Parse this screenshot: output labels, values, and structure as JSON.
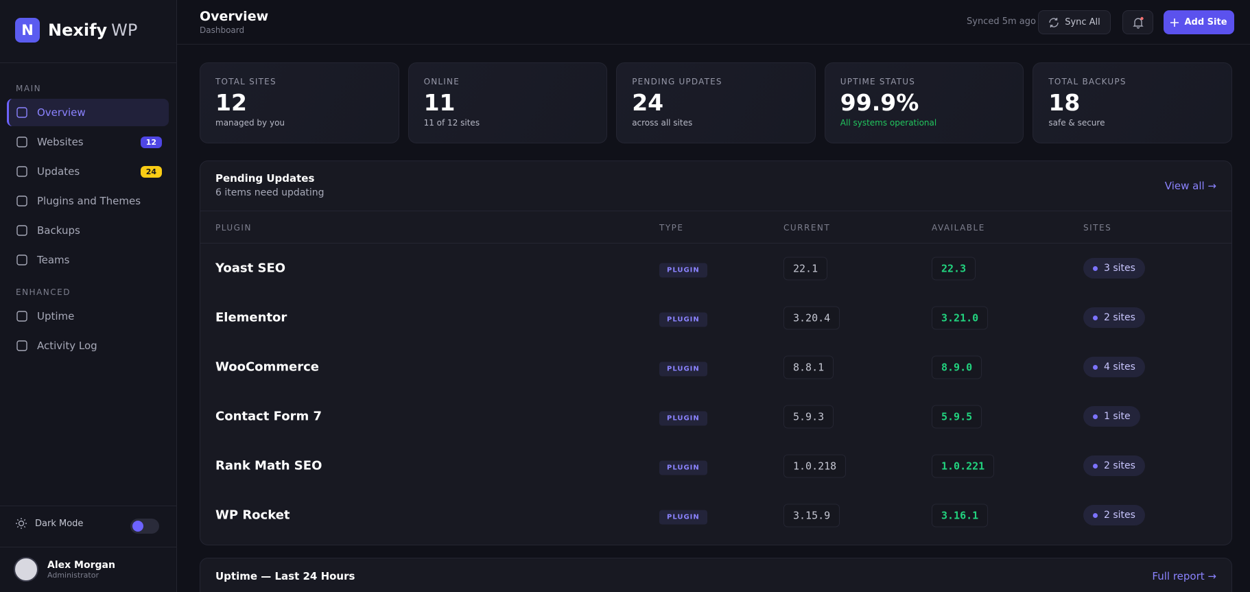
{
  "brand": {
    "logo": "N",
    "name": "Nexify",
    "suffix": "WP"
  },
  "header": {
    "title": "Overview",
    "subtitle": "Dashboard",
    "sync_status": "Synced 5m ago",
    "sync_button": "Sync All",
    "add_button": "Add Site"
  },
  "sidebar": {
    "sections": [
      {
        "label": "MAIN",
        "items": [
          {
            "label": "Overview",
            "active": true
          },
          {
            "label": "Websites",
            "badge": "12",
            "badge_color": "#4f46e5",
            "badge_text_color": "#ffffff"
          },
          {
            "label": "Updates",
            "badge": "24",
            "badge_color": "#facc15",
            "badge_text_color": "#1a1a1a"
          },
          {
            "label": "Plugins and Themes"
          },
          {
            "label": "Backups"
          },
          {
            "label": "Teams"
          }
        ]
      },
      {
        "label": "ENHANCED",
        "items": [
          {
            "label": "Uptime"
          },
          {
            "label": "Activity Log"
          }
        ]
      }
    ],
    "dark_mode": "Dark Mode",
    "user": {
      "name": "Alex Morgan",
      "role": "Administrator"
    }
  },
  "stats": [
    {
      "label": "TOTAL SITES",
      "value": "12",
      "note": "managed by you"
    },
    {
      "label": "ONLINE",
      "value": "11",
      "note": "11 of 12 sites"
    },
    {
      "label": "PENDING UPDATES",
      "value": "24",
      "note": "across all sites"
    },
    {
      "label": "UPTIME STATUS",
      "value": "99.9%",
      "note": "All systems operational",
      "note_color": "#22c55e"
    },
    {
      "label": "TOTAL BACKUPS",
      "value": "18",
      "note": "safe & secure"
    }
  ],
  "updates": {
    "title": "Pending Updates",
    "subtitle": "6 items need updating",
    "link": "View all →",
    "columns": [
      "PLUGIN",
      "TYPE",
      "CURRENT",
      "AVAILABLE",
      "SITES"
    ],
    "rows": [
      [
        "Yoast SEO",
        "PLUGIN",
        "22.1",
        "22.3",
        "3 sites"
      ],
      [
        "Elementor",
        "PLUGIN",
        "3.20.4",
        "3.21.0",
        "2 sites"
      ],
      [
        "WooCommerce",
        "PLUGIN",
        "8.8.1",
        "8.9.0",
        "4 sites"
      ],
      [
        "Contact Form 7",
        "PLUGIN",
        "5.9.3",
        "5.9.5",
        "1 site"
      ],
      [
        "Rank Math SEO",
        "PLUGIN",
        "1.0.218",
        "1.0.221",
        "2 sites"
      ],
      [
        "WP Rocket",
        "PLUGIN",
        "3.15.9",
        "3.16.1",
        "2 sites"
      ]
    ]
  },
  "uptime": {
    "title": "Uptime — Last 24 Hours",
    "link": "Full report →"
  }
}
